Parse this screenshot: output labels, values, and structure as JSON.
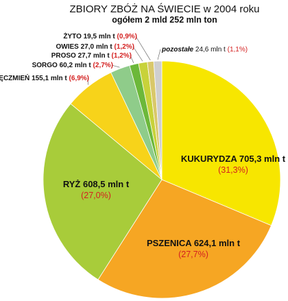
{
  "chart_data": {
    "type": "pie",
    "title": "ZBIORY ZBÓŻ NA ŚWIECIE w 2004 roku",
    "subtitle": "ogółem 2 mld 252 mln ton",
    "unit": "mln t",
    "slices": [
      {
        "name": "KUKURYDZA",
        "value_label": "705,3 mln t",
        "pct_label": "(31,3%)",
        "value": 705.3,
        "percent": 31.3,
        "color": "#f7e600"
      },
      {
        "name": "PSZENICA",
        "value_label": "624,1 mln t",
        "pct_label": "(27,7%)",
        "value": 624.1,
        "percent": 27.7,
        "color": "#f6a623"
      },
      {
        "name": "RYŻ",
        "value_label": "608,5 mln t",
        "pct_label": "(27,0%)",
        "value": 608.5,
        "percent": 27.0,
        "color": "#a8cc3a"
      },
      {
        "name": "JĘCZMIEŃ",
        "value_label": "155,1 mln t",
        "pct_label": "(6,9%)",
        "value": 155.1,
        "percent": 6.9,
        "color": "#f7d31a"
      },
      {
        "name": "SORGO",
        "value_label": "60,2 mln t",
        "pct_label": "(2,7%)",
        "value": 60.2,
        "percent": 2.7,
        "color": "#8fcc8a"
      },
      {
        "name": "PROSO",
        "value_label": "27,7 mln t",
        "pct_label": "(1,2%)",
        "value": 27.7,
        "percent": 1.2,
        "color": "#6cb83a"
      },
      {
        "name": "OWIES",
        "value_label": "27,0 mln t",
        "pct_label": "(1,2%)",
        "value": 27.0,
        "percent": 1.2,
        "color": "#c8d23a"
      },
      {
        "name": "ŻYTO",
        "value_label": "19,5 mln t",
        "pct_label": "(0,9%)",
        "value": 19.5,
        "percent": 0.9,
        "color": "#d9c86a"
      },
      {
        "name": "pozostałe",
        "value_label": "24,6 mln t",
        "pct_label": "(1,1%)",
        "value": 24.6,
        "percent": 1.1,
        "color": "#cfcfcf"
      }
    ]
  }
}
